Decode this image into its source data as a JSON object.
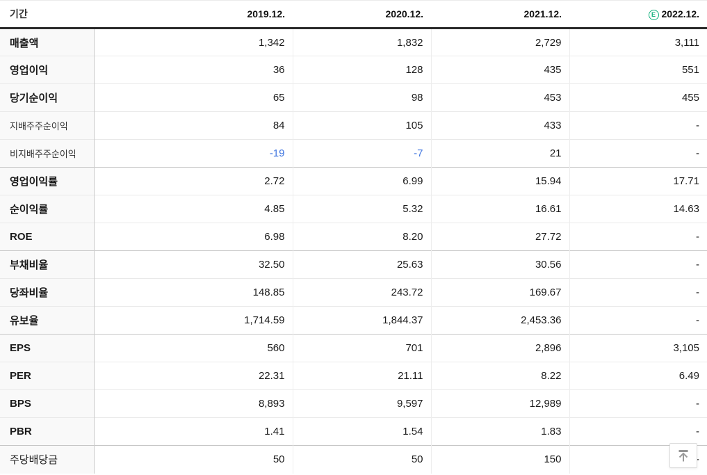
{
  "table": {
    "header": {
      "period_label": "기간",
      "columns": [
        "2019.12.",
        "2020.12.",
        "2021.12.",
        "2022.12."
      ],
      "estimate_badge": "E"
    },
    "rows": [
      {
        "label": "매출액",
        "style": "bold",
        "values": [
          "1,342",
          "1,832",
          "2,729",
          "3,111"
        ]
      },
      {
        "label": "영업이익",
        "style": "bold",
        "values": [
          "36",
          "128",
          "435",
          "551"
        ]
      },
      {
        "label": "당기순이익",
        "style": "bold",
        "values": [
          "65",
          "98",
          "453",
          "455"
        ]
      },
      {
        "label": "지배주주순이익",
        "style": "sub",
        "values": [
          "84",
          "105",
          "433",
          "-"
        ]
      },
      {
        "label": "비지배주주순이익",
        "style": "sub",
        "values": [
          "-19",
          "-7",
          "21",
          "-"
        ]
      },
      {
        "label": "영업이익률",
        "style": "bold",
        "group_start": true,
        "values": [
          "2.72",
          "6.99",
          "15.94",
          "17.71"
        ]
      },
      {
        "label": "순이익률",
        "style": "bold",
        "values": [
          "4.85",
          "5.32",
          "16.61",
          "14.63"
        ]
      },
      {
        "label": "ROE",
        "style": "bold",
        "values": [
          "6.98",
          "8.20",
          "27.72",
          "-"
        ]
      },
      {
        "label": "부채비율",
        "style": "bold",
        "group_start": true,
        "values": [
          "32.50",
          "25.63",
          "30.56",
          "-"
        ]
      },
      {
        "label": "당좌비율",
        "style": "bold",
        "values": [
          "148.85",
          "243.72",
          "169.67",
          "-"
        ]
      },
      {
        "label": "유보율",
        "style": "bold",
        "values": [
          "1,714.59",
          "1,844.37",
          "2,453.36",
          "-"
        ]
      },
      {
        "label": "EPS",
        "style": "bold",
        "group_start": true,
        "values": [
          "560",
          "701",
          "2,896",
          "3,105"
        ]
      },
      {
        "label": "PER",
        "style": "bold",
        "values": [
          "22.31",
          "21.11",
          "8.22",
          "6.49"
        ]
      },
      {
        "label": "BPS",
        "style": "bold",
        "values": [
          "8,893",
          "9,597",
          "12,989",
          "-"
        ]
      },
      {
        "label": "PBR",
        "style": "bold",
        "values": [
          "1.41",
          "1.54",
          "1.83",
          "-"
        ]
      },
      {
        "label": "주당배당금",
        "style": "normal",
        "group_start": true,
        "values": [
          "50",
          "50",
          "150",
          "-"
        ]
      }
    ]
  },
  "colors": {
    "negative_value": "#4277e0",
    "estimate_badge_green": "#11b17c",
    "header_border": "#2a2a2a"
  }
}
